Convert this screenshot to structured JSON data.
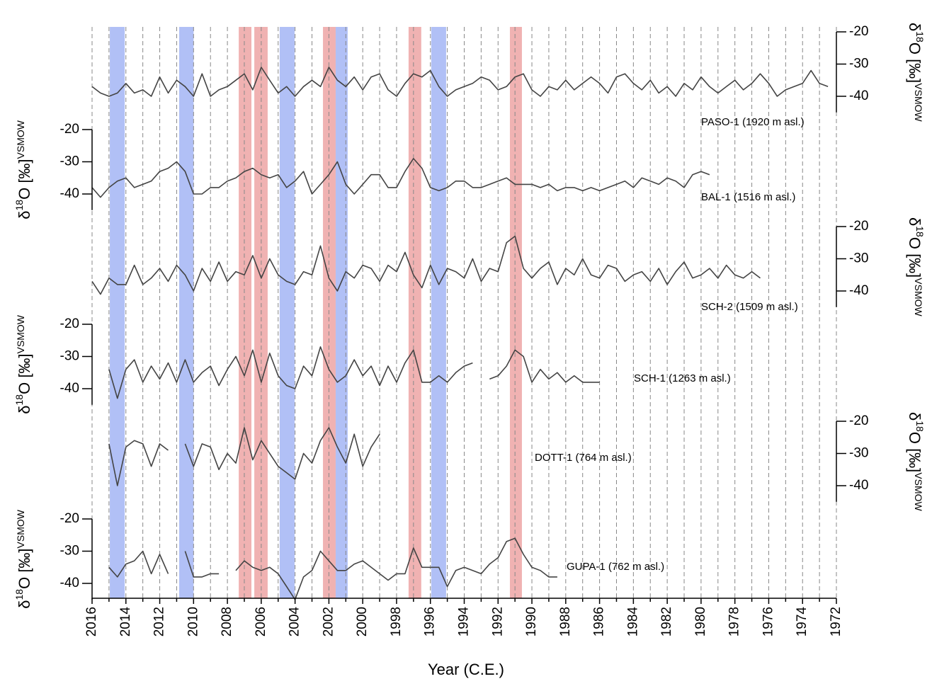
{
  "chart_data": {
    "type": "line",
    "xlabel": "Year (C.E.)",
    "xlim": [
      2016,
      1972
    ],
    "xticks": [
      2016,
      2014,
      2012,
      2010,
      2008,
      2006,
      2004,
      2002,
      2000,
      1998,
      1996,
      1994,
      1992,
      1990,
      1988,
      1986,
      1984,
      1982,
      1980,
      1978,
      1976,
      1974,
      1972
    ],
    "xminor_ticks": [
      2015,
      2013,
      2011,
      2009,
      2007,
      2005,
      2003,
      2001,
      1999,
      1997,
      1995,
      1993,
      1991,
      1989,
      1987,
      1985,
      1983,
      1981,
      1979,
      1977,
      1975,
      1973
    ],
    "grid": true,
    "line_color": "#444444",
    "ylabel": {
      "symbol": "δ",
      "sup": "18",
      "main": "O [‰]",
      "sub": "VSMOW"
    },
    "bands": [
      {
        "from": 2014.95,
        "to": 2014.07,
        "color": "#a9b9f5"
      },
      {
        "from": 2010.85,
        "to": 2010.0,
        "color": "#a9b9f5"
      },
      {
        "from": 2007.33,
        "to": 2006.58,
        "color": "#eeaaaa"
      },
      {
        "from": 2006.41,
        "to": 2005.62,
        "color": "#eeaaaa"
      },
      {
        "from": 2004.91,
        "to": 2004.03,
        "color": "#a9b9f5"
      },
      {
        "from": 2002.35,
        "to": 2001.6,
        "color": "#eeaaaa"
      },
      {
        "from": 2001.6,
        "to": 2000.89,
        "color": "#a9b9f5"
      },
      {
        "from": 1997.29,
        "to": 1996.54,
        "color": "#eeaaaa"
      },
      {
        "from": 1995.95,
        "to": 1995.07,
        "color": "#a9b9f5"
      },
      {
        "from": 1991.3,
        "to": 1990.59,
        "color": "#eeaaaa"
      }
    ],
    "panels": [
      {
        "name": "PASO-1 (1920 m asl.)",
        "axis": "right",
        "ylim": [
          -45,
          -20
        ],
        "yticks": [
          -20,
          -30,
          -40
        ],
        "x": [
          2016,
          2015.5,
          2015,
          2014.5,
          2014,
          2013.5,
          2013,
          2012.5,
          2012,
          2011.5,
          2011,
          2010.5,
          2010,
          2009.5,
          2009,
          2008.5,
          2008,
          2007.5,
          2007,
          2006.5,
          2006,
          2005.5,
          2005,
          2004.5,
          2004,
          2003.5,
          2003,
          2002.5,
          2002,
          2001.5,
          2001,
          2000.5,
          2000,
          1999.5,
          1999,
          1998.5,
          1998,
          1997.5,
          1997,
          1996.5,
          1996,
          1995.5,
          1995,
          1994.5,
          1994,
          1993.5,
          1993,
          1992.5,
          1992,
          1991.5,
          1991,
          1990.5,
          1990,
          1989.5,
          1989,
          1988.5,
          1988,
          1987.5,
          1987,
          1986.5,
          1986,
          1985.5,
          1985,
          1984.5,
          1984,
          1983.5,
          1983,
          1982.5,
          1982,
          1981.5,
          1981,
          1980.5,
          1980,
          1979.5,
          1979,
          1978.5,
          1978,
          1977.5,
          1977,
          1976.5,
          1976,
          1975.5,
          1975,
          1974.5,
          1974,
          1973.5,
          1973,
          1972.5
        ],
        "values": [
          -37,
          -39,
          -40,
          -39,
          -36,
          -39,
          -38,
          -40,
          -34,
          -39,
          -35,
          -37,
          -40,
          -33,
          -40,
          -38,
          -37,
          -35,
          -33,
          -38,
          -31,
          -35,
          -39,
          -37,
          -40,
          -37,
          -35,
          -37,
          -31,
          -35,
          -37,
          -34,
          -38,
          -34,
          -33,
          -38,
          -40,
          -36,
          -33,
          -34,
          -32,
          -37,
          -40,
          -38,
          -37,
          -36,
          -34,
          -35,
          -38,
          -37,
          -34,
          -33,
          -38,
          -40,
          -37,
          -38,
          -35,
          -38,
          -36,
          -34,
          -36,
          -39,
          -34,
          -33,
          -36,
          -38,
          -35,
          -39,
          -37,
          -40,
          -36,
          -38,
          -34,
          -37,
          -39,
          -37,
          -35,
          -38,
          -36,
          -33,
          -36,
          -40,
          -38,
          -37,
          -36,
          -32,
          -36,
          -37
        ]
      },
      {
        "name": "BAL-1 (1516 m asl.)",
        "axis": "left",
        "ylim": [
          -45,
          -20
        ],
        "yticks": [
          -20,
          -30,
          -40
        ],
        "x": [
          2016,
          2015.5,
          2015,
          2014.5,
          2014,
          2013.5,
          2013,
          2012.5,
          2012,
          2011.5,
          2011,
          2010.5,
          2010,
          2009.5,
          2009,
          2008.5,
          2008,
          2007.5,
          2007,
          2006.5,
          2006,
          2005.5,
          2005,
          2004.5,
          2004,
          2003.5,
          2003,
          2002.5,
          2002,
          2001.5,
          2001,
          2000.5,
          2000,
          1999.5,
          1999,
          1998.5,
          1998,
          1997.5,
          1997,
          1996.5,
          1996,
          1995.5,
          1995,
          1994.5,
          1994,
          1993.5,
          1993,
          1992.5,
          1992,
          1991.5,
          1991,
          1990.5,
          1990,
          1989.5,
          1989,
          1988.5,
          1988,
          1987.5,
          1987,
          1986.5,
          1986,
          1985.5,
          1985,
          1984.5,
          1984,
          1983.5,
          1983,
          1982.5,
          1982,
          1981.5,
          1981,
          1980.5,
          1980,
          1979.5
        ],
        "values": [
          -38,
          -41,
          -38,
          -36,
          -35,
          -38,
          -37,
          -36,
          -33,
          -32,
          -30,
          -33,
          -40,
          -40,
          -38,
          -38,
          -36,
          -35,
          -33,
          -32,
          -34,
          -35,
          -34,
          -38,
          -36,
          -33,
          -40,
          -37,
          -34,
          -30,
          -37,
          -40,
          -37,
          -34,
          -34,
          -38,
          -38,
          -33,
          -29,
          -32,
          -38,
          -39,
          -38,
          -36,
          -36,
          -38,
          -38,
          -37,
          -36,
          -35,
          -37,
          -37,
          -37,
          -38,
          -37,
          -39,
          -38,
          -38,
          -39,
          -38,
          -39,
          -38,
          -37,
          -36,
          -38,
          -35,
          -36,
          -37,
          -35,
          -36,
          -38,
          -34,
          -33,
          -34
        ]
      },
      {
        "name": "SCH-2 (1509 m asl.)",
        "axis": "right",
        "ylim": [
          -45,
          -20
        ],
        "yticks": [
          -20,
          -30,
          -40
        ],
        "x": [
          2016,
          2015.5,
          2015,
          2014.5,
          2014,
          2013.5,
          2013,
          2012.5,
          2012,
          2011.5,
          2011,
          2010.5,
          2010,
          2009.5,
          2009,
          2008.5,
          2008,
          2007.5,
          2007,
          2006.5,
          2006,
          2005.5,
          2005,
          2004.5,
          2004,
          2003.5,
          2003,
          2002.5,
          2002,
          2001.5,
          2001,
          2000.5,
          2000,
          1999.5,
          1999,
          1998.5,
          1998,
          1997.5,
          1997,
          1996.5,
          1996,
          1995.5,
          1995,
          1994.5,
          1994,
          1993.5,
          1993,
          1992.5,
          1992,
          1991.5,
          1991,
          1990.5,
          1990,
          1989.5,
          1989,
          1988.5,
          1988,
          1987.5,
          1987,
          1986.5,
          1986,
          1985.5,
          1985,
          1984.5,
          1984,
          1983.5,
          1983,
          1982.5,
          1982,
          1981.5,
          1981,
          1980.5,
          1980,
          1979.5,
          1979,
          1978.5,
          1978,
          1977.5,
          1977,
          1976.5
        ],
        "values": [
          -37,
          -41,
          -36,
          -38,
          -38,
          -32,
          -38,
          -36,
          -33,
          -37,
          -32,
          -35,
          -40,
          -33,
          -37,
          -31,
          -37,
          -34,
          -35,
          -29,
          -36,
          -30,
          -35,
          -37,
          -38,
          -34,
          -35,
          -26,
          -36,
          -40,
          -34,
          -36,
          -32,
          -33,
          -37,
          -32,
          -34,
          -28,
          -35,
          -39,
          -32,
          -38,
          -33,
          -34,
          -36,
          -30,
          -37,
          -33,
          -34,
          -25,
          -23,
          -33,
          -36,
          -33,
          -31,
          -38,
          -33,
          -35,
          -30,
          -35,
          -36,
          -32,
          -33,
          -37,
          -35,
          -34,
          -37,
          -33,
          -38,
          -34,
          -31,
          -36,
          -35,
          -33,
          -36,
          -32,
          -35,
          -36,
          -34,
          -36
        ]
      },
      {
        "name": "SCH-1 (1263 m asl.)",
        "axis": "left",
        "ylim": [
          -45,
          -20
        ],
        "yticks": [
          -20,
          -30,
          -40
        ],
        "x": [
          2015,
          2014.5,
          2014,
          2013.5,
          2013,
          2012.5,
          2012,
          2011.5,
          2011,
          2010.5,
          2010,
          2009.5,
          2009,
          2008.5,
          2008,
          2007.5,
          2007,
          2006.5,
          2006,
          2005.5,
          2005,
          2004.5,
          2004,
          2003.5,
          2003,
          2002.5,
          2002,
          2001.5,
          2001,
          2000.5,
          2000,
          1999.5,
          1999,
          1998.5,
          1998,
          1997.5,
          1997,
          1996.5,
          1996,
          1995.5,
          1995,
          1994.5,
          1994,
          1993.5,
          1993,
          1992.5,
          1992,
          1991.5,
          1991,
          1990.5,
          1990,
          1989.5,
          1989,
          1988.5,
          1988,
          1987.5,
          1987,
          1986.5,
          1986
        ],
        "values": [
          -34,
          -43,
          -34,
          -31,
          -38,
          -33,
          -37,
          -32,
          -38,
          -31,
          -38,
          -35,
          -33,
          -39,
          -34,
          -30,
          -36,
          -28,
          -38,
          -29,
          -36,
          -39,
          -40,
          -33,
          -36,
          -27,
          -34,
          -38,
          -36,
          -31,
          -36,
          -33,
          -39,
          -33,
          -38,
          -32,
          -28,
          -38,
          -38,
          -36,
          -38,
          -35,
          -33,
          -32,
          null,
          -37,
          -36,
          -33,
          -28,
          -30,
          -38,
          -34,
          -37,
          -35,
          -38,
          -36,
          -38,
          -38,
          -38
        ]
      },
      {
        "name": "DOTT-1 (764 m asl.)",
        "axis": "right",
        "ylim": [
          -45,
          -20
        ],
        "yticks": [
          -20,
          -30,
          -40
        ],
        "x": [
          2015,
          2014.5,
          2014,
          2013.5,
          2013,
          2012.5,
          2012,
          2011.5,
          2011,
          2010.5,
          2010,
          2009.5,
          2009,
          2008.5,
          2008,
          2007.5,
          2007,
          2006.5,
          2006,
          2005.5,
          2005,
          2004.5,
          2004,
          2003.5,
          2003,
          2002.5,
          2002,
          2001.5,
          2001,
          2000.5,
          2000,
          1999.5,
          1999
        ],
        "values": [
          -27,
          -40,
          -28,
          -26,
          -27,
          -34,
          -27,
          -29,
          null,
          -27,
          -34,
          -27,
          -28,
          -35,
          -30,
          -33,
          -22,
          -32,
          -26,
          -30,
          -34,
          -36,
          -38,
          -30,
          -33,
          -26,
          -22,
          -28,
          -33,
          -24,
          -34,
          -28,
          -24
        ]
      },
      {
        "name": "GUPA-1 (762 m asl.)",
        "axis": "left",
        "ylim": [
          -45,
          -20
        ],
        "yticks": [
          -20,
          -30,
          -40
        ],
        "x": [
          2015,
          2014.5,
          2014,
          2013.5,
          2013,
          2012.5,
          2012,
          2011.5,
          2011,
          2010.5,
          2010,
          2009.5,
          2009,
          2008.5,
          2008,
          2007.5,
          2007,
          2006.5,
          2006,
          2005.5,
          2005,
          2004.5,
          2004,
          2003.5,
          2003,
          2002.5,
          2002,
          2001.5,
          2001,
          2000.5,
          2000,
          1999.5,
          1999,
          1998.5,
          1998,
          1997.5,
          1997,
          1996.5,
          1996,
          1995.5,
          1995,
          1994.5,
          1994,
          1993.5,
          1993,
          1992.5,
          1992,
          1991.5,
          1991,
          1990.5,
          1990,
          1989.5,
          1989,
          1988.5
        ],
        "values": [
          -35,
          -38,
          -34,
          -33,
          -30,
          -37,
          -31,
          -37,
          null,
          -30,
          -38,
          -38,
          -37,
          -37,
          null,
          -36,
          -33,
          -35,
          -36,
          -35,
          -37,
          -41,
          -45,
          -38,
          -36,
          -30,
          -33,
          -36,
          -36,
          -34,
          -33,
          -35,
          -37,
          -39,
          -37,
          -37,
          -29,
          -35,
          -35,
          -35,
          -41,
          -36,
          -35,
          -36,
          -37,
          -34,
          -32,
          -27,
          -26,
          -31,
          -35,
          -36,
          -38,
          -38
        ]
      }
    ]
  }
}
